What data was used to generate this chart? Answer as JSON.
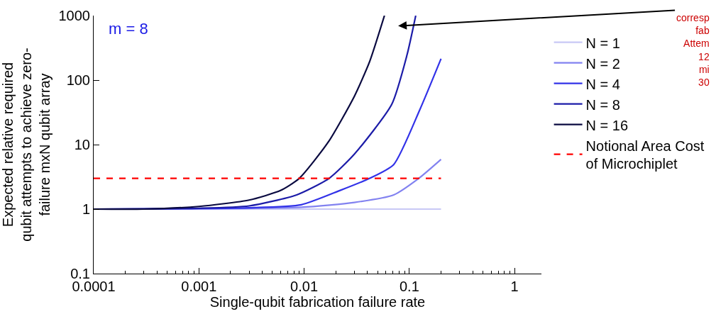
{
  "chart_data": {
    "type": "line",
    "xlabel": "Single-qubit fabrication failure rate",
    "ylabel": "Expected relative required\nqubit attempts to achieve zero-\nfailure mxN qubit array",
    "log": "xy",
    "xlim": [
      0.0001,
      1.8
    ],
    "xticks": [
      0.0001,
      0.001,
      0.01,
      0.1,
      1
    ],
    "ylim": [
      0.1,
      1000
    ],
    "yticks": [
      0.1,
      1,
      10,
      100,
      1000
    ],
    "legend": "right",
    "marker": "none",
    "series": [
      {
        "name": "N = 1",
        "color": "#c8c8f6",
        "x": [
          0.0001,
          0.2
        ],
        "values": [
          1,
          1
        ]
      },
      {
        "name": "N = 2",
        "color": "#8282f0",
        "x": [
          0.0001,
          0.0094,
          0.03,
          0.071,
          0.123,
          0.2
        ],
        "values": [
          1,
          1.07,
          1.27,
          1.66,
          3,
          5.9
        ]
      },
      {
        "name": "N = 4",
        "color": "#3232e8",
        "x": [
          0.0001,
          0.003,
          0.0094,
          0.022,
          0.042,
          0.071,
          0.126,
          0.2
        ],
        "values": [
          1,
          1.05,
          1.17,
          1.95,
          3,
          4.9,
          35,
          214
        ]
      },
      {
        "name": "N = 8",
        "color": "#1c1ca8",
        "x": [
          0.0001,
          0.001,
          0.003,
          0.0085,
          0.0173,
          0.03,
          0.068,
          0.095,
          0.115
        ],
        "values": [
          1,
          1.03,
          1.12,
          1.66,
          3,
          7.1,
          42,
          245,
          1000
        ]
      },
      {
        "name": "N = 16",
        "color": "#0a0a40",
        "x": [
          0.0001,
          0.0003,
          0.001,
          0.003,
          0.006,
          0.009,
          0.017,
          0.03,
          0.042,
          0.058
        ],
        "values": [
          1,
          1,
          1.1,
          1.38,
          1.95,
          3,
          11,
          56,
          195,
          1000
        ]
      },
      {
        "name": "Notional Area Cost\nof Microchiplet",
        "color": "#ff0000",
        "line_style": "dashed",
        "x": [
          0.0001,
          0.2
        ],
        "values": [
          3,
          3
        ]
      }
    ],
    "annotations": [
      {
        "text": "m = 8"
      },
      "corresp\nfab\nAttem\n12\nmi\n30"
    ]
  }
}
